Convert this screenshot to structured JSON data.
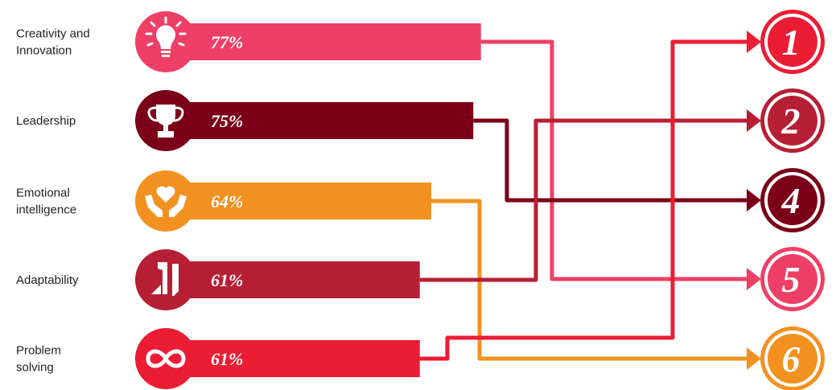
{
  "chart_data": {
    "type": "bar",
    "orientation": "horizontal",
    "categories": [
      [
        "Creativity and",
        "Innovation"
      ],
      [
        "Leadership"
      ],
      [
        "Emotional",
        "intelligence"
      ],
      [
        "Adaptability"
      ],
      [
        "Problem",
        "solving"
      ]
    ],
    "values": [
      77,
      75,
      64,
      61,
      61
    ],
    "value_labels": [
      "77%",
      "75%",
      "64%",
      "61%",
      "61%"
    ],
    "icons": [
      "lightbulb-icon",
      "trophy-icon",
      "heart-hands-icon",
      "tools-icon",
      "infinity-icon"
    ],
    "colors": [
      "#ef3f66",
      "#7b0017",
      "#f39120",
      "#b71f35",
      "#eb1c34"
    ],
    "ranks": [
      "1",
      "2",
      "4",
      "5",
      "6"
    ],
    "rank_colors": [
      "#eb1c34",
      "#b71f35",
      "#7b0017",
      "#ef3f66",
      "#f39120"
    ],
    "connections": [
      {
        "from": 0,
        "to_rank": 3
      },
      {
        "from": 1,
        "to_rank": 2
      },
      {
        "from": 2,
        "to_rank": 4
      },
      {
        "from": 3,
        "to_rank": 1
      },
      {
        "from": 4,
        "to_rank": 0
      }
    ]
  }
}
